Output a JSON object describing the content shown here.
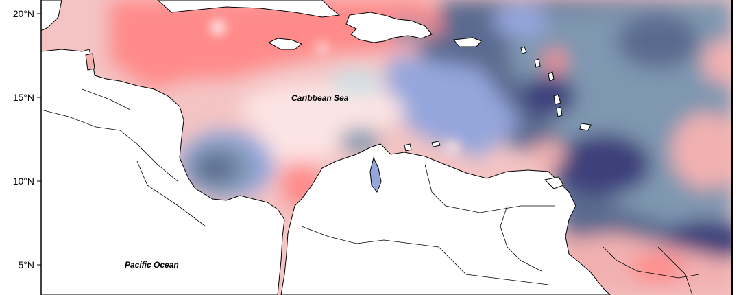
{
  "map": {
    "labels": {
      "sea": "Caribbean Sea",
      "ocean": "Pacific Ocean"
    },
    "lat_ticks": [
      "20°N",
      "15°N",
      "10°N",
      "5°N"
    ],
    "colors": {
      "strong_positive": "#ff8a8a",
      "positive": "#f2b1b1",
      "weak_positive": "#fde4e4",
      "neutral": "#cfe0e6",
      "weak_negative": "#94a6dc",
      "negative": "#7f97b0",
      "strong_negative": "#5a6a8f",
      "very_strong_negative": "#3e3f7a",
      "land": "#ffffff",
      "coastline": "#000000"
    }
  }
}
